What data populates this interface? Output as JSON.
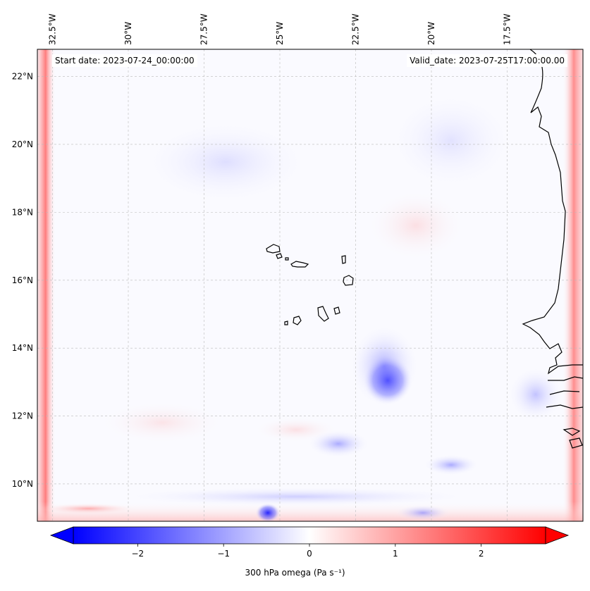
{
  "map": {
    "start_date": "Start date: 2023-07-24_00:00:00",
    "valid_date": "Valid_date: 2023-07-25T17:00:00.00",
    "extent": {
      "lon_min": -33.0,
      "lon_max": -15.0,
      "lat_min": 8.9,
      "lat_max": 22.8
    },
    "lon_ticks": [
      {
        "value": -32.5,
        "label": "32.5°W"
      },
      {
        "value": -30.0,
        "label": "30°W"
      },
      {
        "value": -27.5,
        "label": "27.5°W"
      },
      {
        "value": -25.0,
        "label": "25°W"
      },
      {
        "value": -22.5,
        "label": "22.5°W"
      },
      {
        "value": -20.0,
        "label": "20°W"
      },
      {
        "value": -17.5,
        "label": "17.5°W"
      }
    ],
    "lat_ticks": [
      {
        "value": 22,
        "label": "22°N"
      },
      {
        "value": 20,
        "label": "20°N"
      },
      {
        "value": 18,
        "label": "18°N"
      },
      {
        "value": 16,
        "label": "16°N"
      },
      {
        "value": 14,
        "label": "14°N"
      },
      {
        "value": 12,
        "label": "12°N"
      },
      {
        "value": 10,
        "label": "10°N"
      }
    ],
    "gridlines": true,
    "field": "300 hPa omega",
    "colormap": {
      "low": "#0000ff",
      "mid": "#ffffff",
      "high": "#ff0000"
    },
    "coastline_color": "#000000"
  },
  "colorbar": {
    "label": "300 hPa omega (Pa s⁻¹)",
    "min": -2.75,
    "max": 2.75,
    "extend": "both",
    "ticks": [
      {
        "value": -2,
        "label": "−2"
      },
      {
        "value": -1,
        "label": "−1"
      },
      {
        "value": 0,
        "label": "0"
      },
      {
        "value": 1,
        "label": "1"
      },
      {
        "value": 2,
        "label": "2"
      }
    ]
  }
}
